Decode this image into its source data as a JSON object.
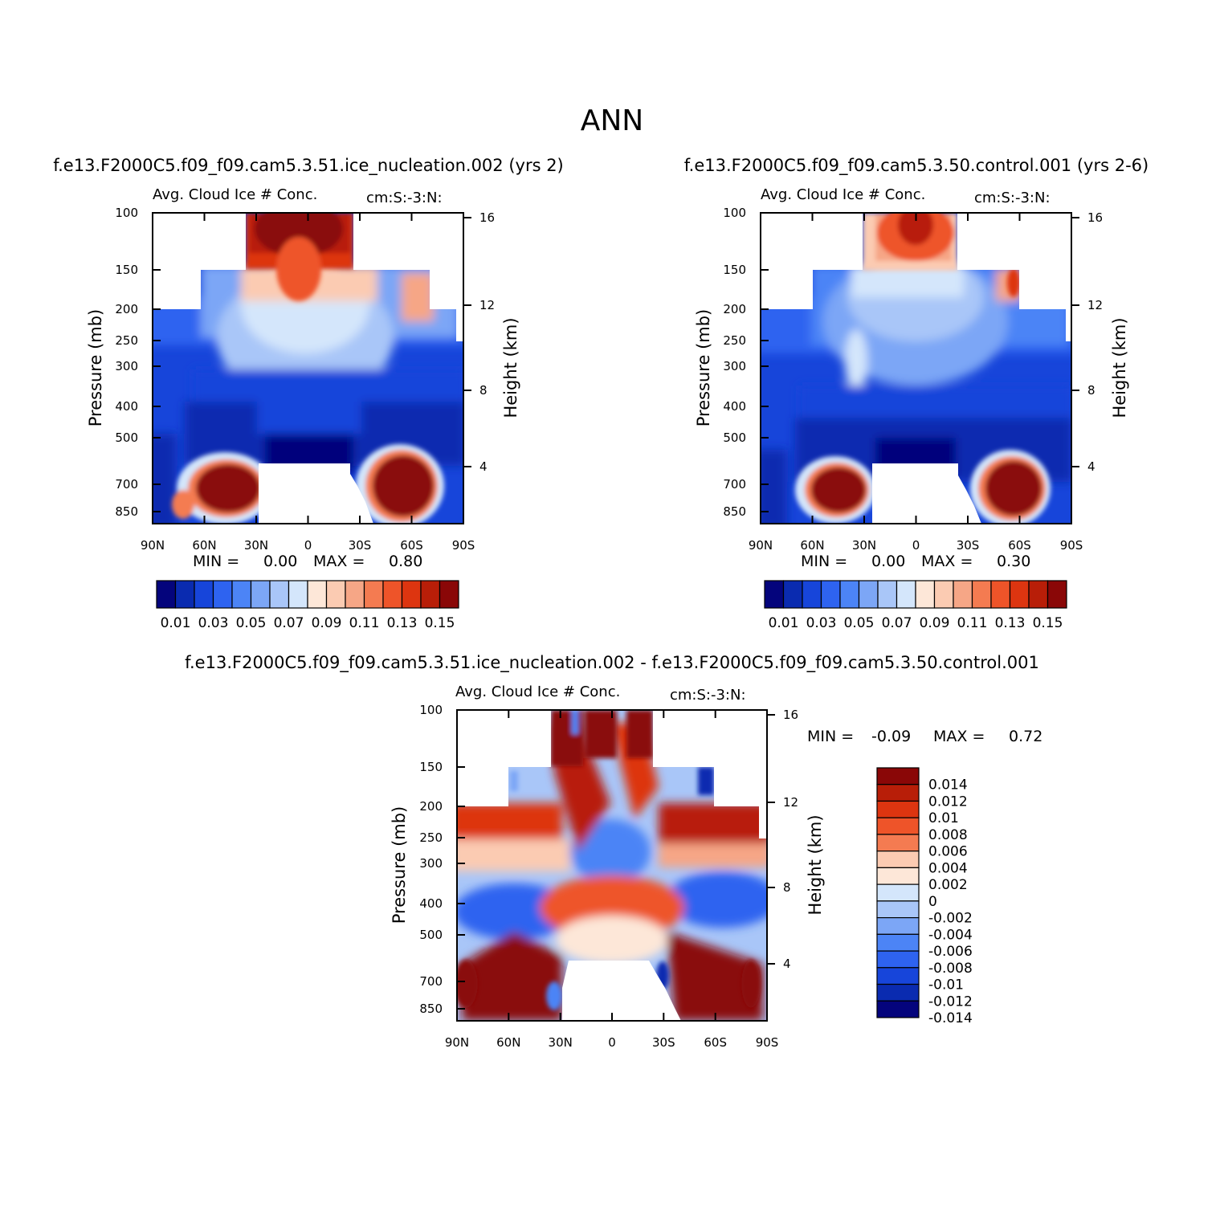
{
  "page_title": "ANN",
  "shared": {
    "panel_title": "Avg. Cloud Ice # Conc.",
    "panel_units": "cm:S:-3:N:",
    "ylabel_left": "Pressure (mb)",
    "ylabel_right": "Height (km)",
    "min_label": "MIN =",
    "max_label": "MAX ="
  },
  "chart_data": [
    {
      "type": "heatmap",
      "title": "f.e13.F2000C5.f09_f09.cam5.3.51.ice_nucleation.002 (yrs 2)",
      "subtitle": "Avg. Cloud Ice # Conc.",
      "units": "cm:S:-3:N:",
      "xlabel": "",
      "ylabel": "Pressure (mb)",
      "ylabel_right": "Height (km)",
      "x_ticks": [
        "90N",
        "60N",
        "30N",
        "0",
        "30S",
        "60S",
        "90S"
      ],
      "y_ticks": [
        100,
        150,
        200,
        250,
        300,
        400,
        500,
        700,
        850
      ],
      "y_right_ticks": [
        16,
        12,
        8,
        4
      ],
      "y_scale": "log",
      "min": "0.00",
      "max": "0.80",
      "colorbar_labels": [
        "0.01",
        "0.03",
        "0.05",
        "0.07",
        "0.09",
        "0.11",
        "0.13",
        "0.15"
      ],
      "colorbar_orientation": "horizontal",
      "colors": [
        "#04047c",
        "#0a2bb0",
        "#1745da",
        "#2e63f0",
        "#4c84f6",
        "#7ca6f6",
        "#a9c6f8",
        "#d4e6fb",
        "#fde7d8",
        "#fbcbb2",
        "#f6a686",
        "#f47b51",
        "#ee5429",
        "#dd3510",
        "#b81e08",
        "#8a0707"
      ]
    },
    {
      "type": "heatmap",
      "title": "f.e13.F2000C5.f09_f09.cam5.3.50.control.001 (yrs 2-6)",
      "subtitle": "Avg. Cloud Ice # Conc.",
      "units": "cm:S:-3:N:",
      "xlabel": "",
      "ylabel": "Pressure (mb)",
      "ylabel_right": "Height (km)",
      "x_ticks": [
        "90N",
        "60N",
        "30N",
        "0",
        "30S",
        "60S",
        "90S"
      ],
      "y_ticks": [
        100,
        150,
        200,
        250,
        300,
        400,
        500,
        700,
        850
      ],
      "y_right_ticks": [
        16,
        12,
        8,
        4
      ],
      "y_scale": "log",
      "min": "0.00",
      "max": "0.30",
      "colorbar_labels": [
        "0.01",
        "0.03",
        "0.05",
        "0.07",
        "0.09",
        "0.11",
        "0.13",
        "0.15"
      ],
      "colorbar_orientation": "horizontal",
      "colors": [
        "#04047c",
        "#0a2bb0",
        "#1745da",
        "#2e63f0",
        "#4c84f6",
        "#7ca6f6",
        "#a9c6f8",
        "#d4e6fb",
        "#fde7d8",
        "#fbcbb2",
        "#f6a686",
        "#f47b51",
        "#ee5429",
        "#dd3510",
        "#b81e08",
        "#8a0707"
      ]
    },
    {
      "type": "heatmap",
      "title": "f.e13.F2000C5.f09_f09.cam5.3.51.ice_nucleation.002 - f.e13.F2000C5.f09_f09.cam5.3.50.control.001",
      "subtitle": "Avg. Cloud Ice # Conc.",
      "units": "cm:S:-3:N:",
      "xlabel": "",
      "ylabel": "Pressure (mb)",
      "ylabel_right": "Height (km)",
      "x_ticks": [
        "90N",
        "60N",
        "30N",
        "0",
        "30S",
        "60S",
        "90S"
      ],
      "y_ticks": [
        100,
        150,
        200,
        250,
        300,
        400,
        500,
        700,
        850
      ],
      "y_right_ticks": [
        16,
        12,
        8,
        4
      ],
      "y_scale": "log",
      "min": "-0.09",
      "max": "0.72",
      "colorbar_labels": [
        "0.014",
        "0.012",
        "0.01",
        "0.008",
        "0.006",
        "0.004",
        "0.002",
        "0",
        "-0.002",
        "-0.004",
        "-0.006",
        "-0.008",
        "-0.01",
        "-0.012",
        "-0.014"
      ],
      "colorbar_orientation": "vertical",
      "colors": [
        "#8a0707",
        "#b81e08",
        "#dd3510",
        "#ee5429",
        "#f47b51",
        "#fbcbb2",
        "#fde7d8",
        "#d4e6fb",
        "#a9c6f8",
        "#7ca6f6",
        "#4c84f6",
        "#2e63f0",
        "#1745da",
        "#0a2bb0",
        "#04047c"
      ]
    }
  ]
}
